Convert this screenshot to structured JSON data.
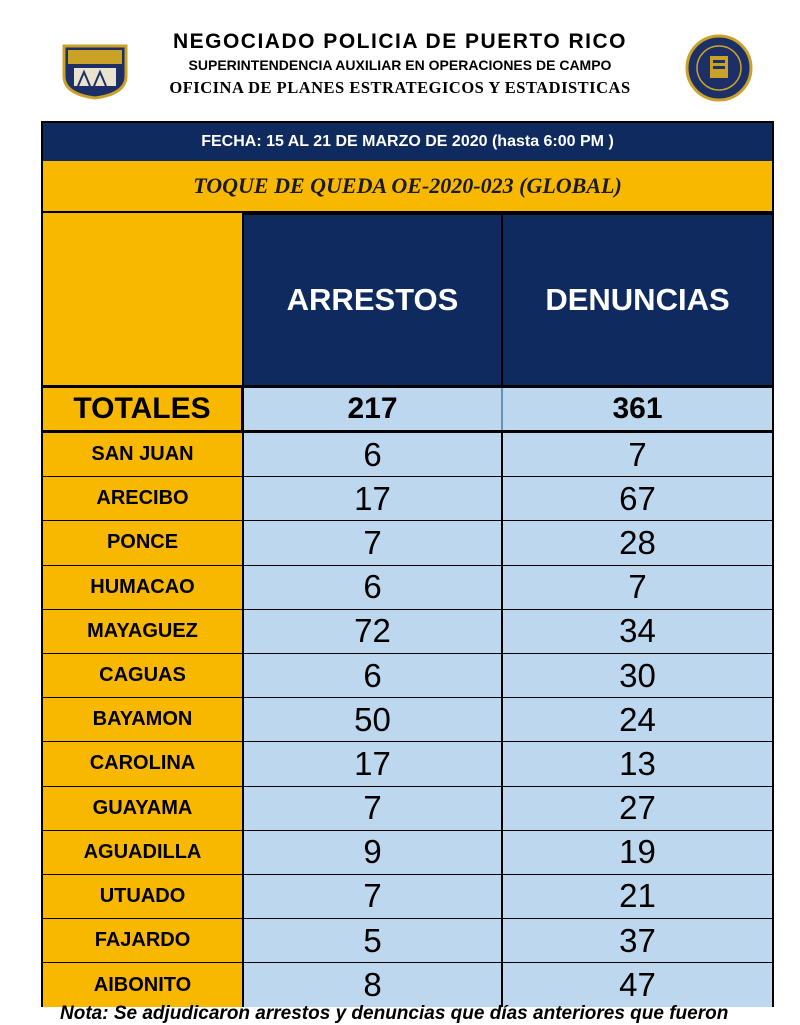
{
  "header": {
    "line1": "NEGOCIADO POLICIA DE PUERTO RICO",
    "line2": "SUPERINTENDENCIA AUXILIAR EN OPERACIONES DE CAMPO",
    "line3": "OFICINA DE PLANES ESTRATEGICOS Y ESTADISTICAS",
    "left_logo_icon": "police-shield-logo-icon",
    "right_logo_icon": "superintendencia-seal-icon"
  },
  "table": {
    "date": "FECHA: 15 AL 21 DE MARZO DE 2020 (hasta 6:00 PM )",
    "title": "TOQUE DE QUEDA OE-2020-023 (GLOBAL)",
    "columns": [
      "ARRESTOS",
      "DENUNCIAS"
    ],
    "totals": {
      "label": "TOTALES",
      "arrestos": "217",
      "denuncias": "361"
    },
    "rows": [
      {
        "name": "SAN JUAN",
        "arrestos": "6",
        "denuncias": "7"
      },
      {
        "name": "ARECIBO",
        "arrestos": "17",
        "denuncias": "67"
      },
      {
        "name": "PONCE",
        "arrestos": "7",
        "denuncias": "28"
      },
      {
        "name": "HUMACAO",
        "arrestos": "6",
        "denuncias": "7"
      },
      {
        "name": "MAYAGUEZ",
        "arrestos": "72",
        "denuncias": "34"
      },
      {
        "name": "CAGUAS",
        "arrestos": "6",
        "denuncias": "30"
      },
      {
        "name": "BAYAMON",
        "arrestos": "50",
        "denuncias": "24"
      },
      {
        "name": "CAROLINA",
        "arrestos": "17",
        "denuncias": "13"
      },
      {
        "name": "GUAYAMA",
        "arrestos": "7",
        "denuncias": "27"
      },
      {
        "name": "AGUADILLA",
        "arrestos": "9",
        "denuncias": "19"
      },
      {
        "name": "UTUADO",
        "arrestos": "7",
        "denuncias": "21"
      },
      {
        "name": "FAJARDO",
        "arrestos": "5",
        "denuncias": "37"
      },
      {
        "name": "AIBONITO",
        "arrestos": "8",
        "denuncias": "47"
      }
    ]
  },
  "note": "Nota: Se adjudicaron arrestos y denuncias que días anteriores que fueron",
  "colors": {
    "navy": "#0f2a5f",
    "gold": "#f9b800",
    "light_blue": "#bdd7ee"
  }
}
